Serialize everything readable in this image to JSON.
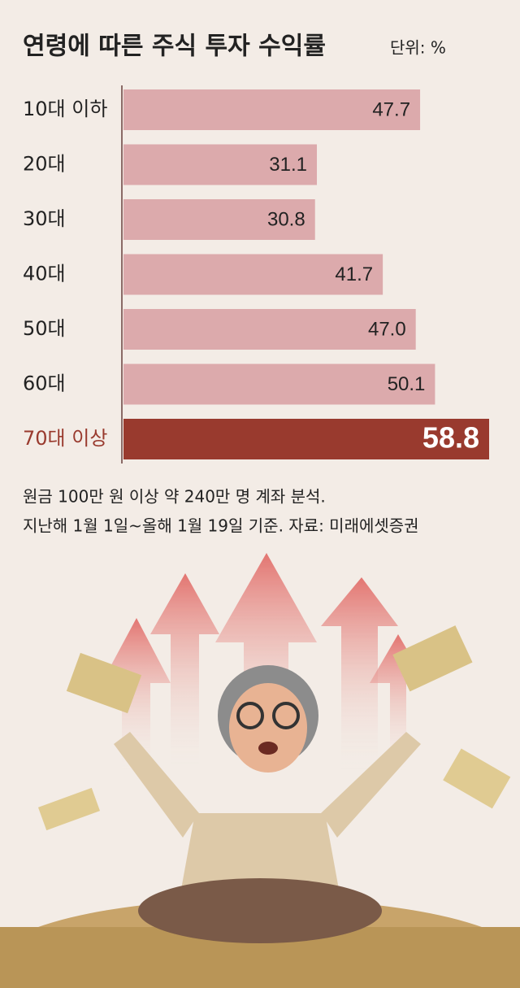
{
  "chart_data": {
    "type": "bar",
    "orientation": "horizontal",
    "title": "연령에 따른 주식 투자 수익률",
    "unit": "단위: %",
    "categories": [
      "10대 이하",
      "20대",
      "30대",
      "40대",
      "50대",
      "60대",
      "70대 이상"
    ],
    "values": [
      47.7,
      31.1,
      30.8,
      41.7,
      47.0,
      50.1,
      58.8
    ],
    "value_labels": [
      "47.7",
      "31.1",
      "30.8",
      "41.7",
      "47.0",
      "50.1",
      "58.8"
    ],
    "colors": [
      "#dcaaac",
      "#dcaaac",
      "#dcaaac",
      "#dcaaac",
      "#dcaaac",
      "#dcaaac",
      "#993a2e"
    ],
    "notes": [
      "원금 100만 원 이상 약 240만 명 계좌 분석.",
      "지난해 1월 1일~올해 1월 19일 기준. 자료: 미래에셋증권"
    ]
  }
}
